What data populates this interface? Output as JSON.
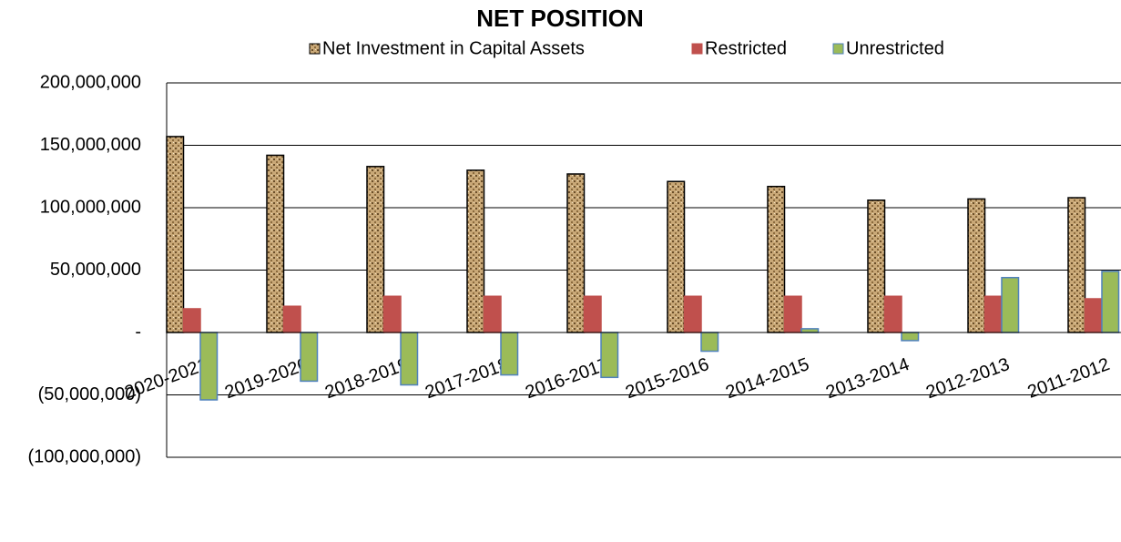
{
  "chart_data": {
    "type": "bar",
    "title": "NET POSITION",
    "categories": [
      "2020-2021",
      "2019-2020",
      "2018-2019",
      "2017-2018",
      "2016-2017",
      "2015-2016",
      "2014-2015",
      "2013-2014",
      "2012-2013",
      "2011-2012"
    ],
    "series": [
      {
        "name": "Net Investment in Capital Assets",
        "color": "#c9a877",
        "values": [
          157000000,
          142000000,
          133000000,
          130000000,
          127000000,
          121000000,
          117000000,
          106000000,
          107000000,
          108000000
        ]
      },
      {
        "name": "Restricted",
        "color": "#c0504d",
        "values": [
          19000000,
          21000000,
          29000000,
          29000000,
          29000000,
          29000000,
          29000000,
          29000000,
          29000000,
          27000000
        ]
      },
      {
        "name": "Unrestricted",
        "color": "#9bbb59",
        "values": [
          -54000000,
          -39000000,
          -42000000,
          -34000000,
          -36000000,
          -15000000,
          3000000,
          -6500000,
          44000000,
          49000000
        ]
      }
    ],
    "ylim": [
      -100000000,
      200000000
    ],
    "yticks": [
      {
        "value": -100000000,
        "label": "(100,000,000)"
      },
      {
        "value": -50000000,
        "label": "(50,000,000)"
      },
      {
        "value": 0,
        "label": "-"
      },
      {
        "value": 50000000,
        "label": "50,000,000"
      },
      {
        "value": 100000000,
        "label": "100,000,000"
      },
      {
        "value": 150000000,
        "label": "150,000,000"
      },
      {
        "value": 200000000,
        "label": "200,000,000"
      }
    ],
    "grid": true
  }
}
